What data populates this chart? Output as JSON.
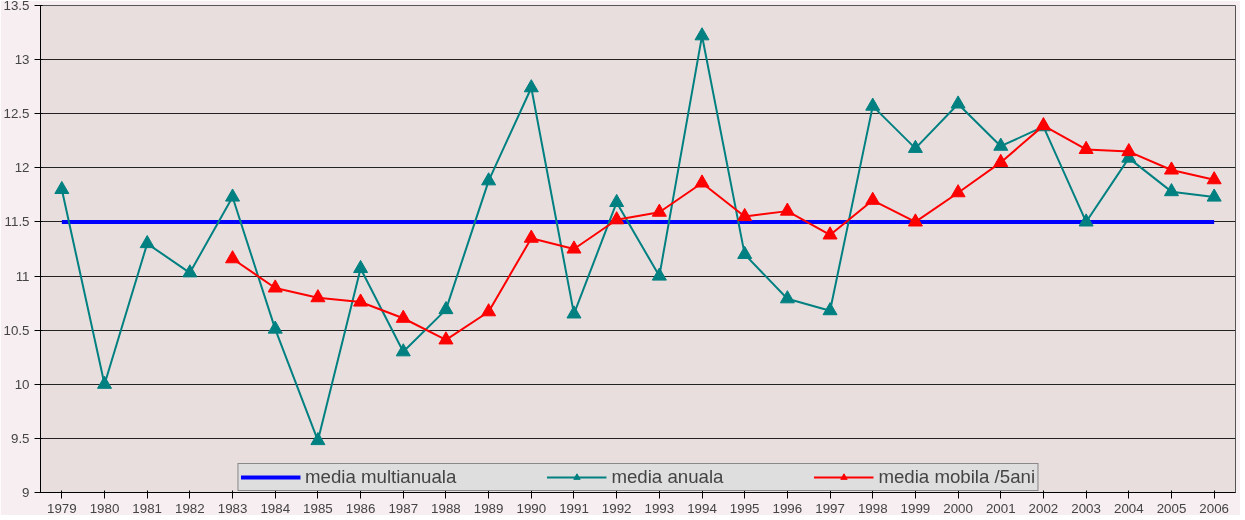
{
  "chart_data": {
    "type": "line",
    "categories": [
      "1979",
      "1980",
      "1981",
      "1982",
      "1983",
      "1984",
      "1985",
      "1986",
      "1987",
      "1988",
      "1989",
      "1990",
      "1991",
      "1992",
      "1993",
      "1994",
      "1995",
      "1996",
      "1997",
      "1998",
      "1999",
      "2000",
      "2001",
      "2002",
      "2003",
      "2004",
      "2005",
      "2006"
    ],
    "series": [
      {
        "name": "media multianuala",
        "color": "#0000ff",
        "marker": "none",
        "values": [
          11.5,
          11.5,
          11.5,
          11.5,
          11.5,
          11.5,
          11.5,
          11.5,
          11.5,
          11.5,
          11.5,
          11.5,
          11.5,
          11.5,
          11.5,
          11.5,
          11.5,
          11.5,
          11.5,
          11.5,
          11.5,
          11.5,
          11.5,
          11.5,
          11.5,
          11.5,
          11.5,
          11.5
        ]
      },
      {
        "name": "media anuala",
        "color": "#008080",
        "marker": "triangle",
        "values": [
          11.8,
          10.0,
          11.3,
          11.03,
          11.73,
          10.51,
          9.48,
          11.07,
          10.3,
          10.69,
          11.88,
          12.74,
          10.65,
          11.68,
          11.0,
          13.22,
          11.2,
          10.79,
          10.68,
          12.57,
          12.18,
          12.59,
          12.2,
          12.38,
          11.5,
          12.09,
          11.78,
          11.73
        ]
      },
      {
        "name": "media mobila /5ani",
        "color": "#ff0000",
        "marker": "triangle",
        "values": [
          null,
          null,
          null,
          null,
          11.16,
          10.89,
          10.8,
          10.76,
          10.61,
          10.41,
          10.67,
          11.35,
          11.25,
          11.52,
          11.59,
          11.86,
          11.55,
          11.6,
          11.38,
          11.7,
          11.5,
          11.77,
          12.05,
          12.39,
          12.17,
          12.15,
          11.98,
          11.89
        ]
      }
    ],
    "ylim": [
      9,
      13.5
    ],
    "yticks": [
      9,
      9.5,
      10,
      10.5,
      11,
      11.5,
      12,
      12.5,
      13,
      13.5
    ],
    "grid": "y",
    "legend": "bottom",
    "line_style": "solid"
  }
}
